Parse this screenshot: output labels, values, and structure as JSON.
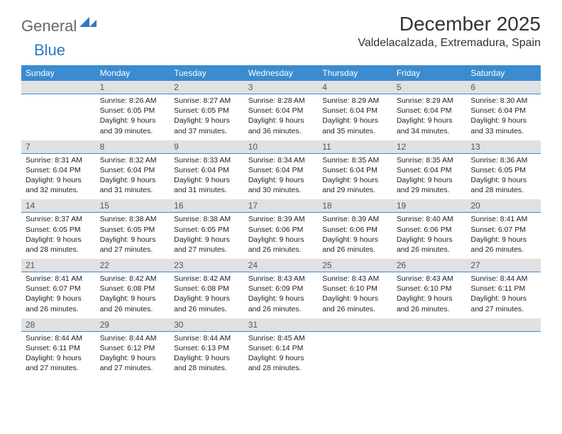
{
  "logo": {
    "text1": "General",
    "text2": "Blue"
  },
  "title": "December 2025",
  "location": "Valdelacalzada, Extremadura, Spain",
  "colors": {
    "header_bg": "#3b8bd0",
    "header_text": "#ffffff",
    "daynum_bg": "#e1e1e1",
    "daynum_border": "#3b8bd0",
    "body_text": "#222222",
    "logo_gray": "#666666",
    "logo_blue": "#2f78c4"
  },
  "weekdays": [
    "Sunday",
    "Monday",
    "Tuesday",
    "Wednesday",
    "Thursday",
    "Friday",
    "Saturday"
  ],
  "weeks": [
    {
      "nums": [
        "",
        "1",
        "2",
        "3",
        "4",
        "5",
        "6"
      ],
      "cells": [
        null,
        {
          "sr": "Sunrise: 8:26 AM",
          "ss": "Sunset: 6:05 PM",
          "d1": "Daylight: 9 hours",
          "d2": "and 39 minutes."
        },
        {
          "sr": "Sunrise: 8:27 AM",
          "ss": "Sunset: 6:05 PM",
          "d1": "Daylight: 9 hours",
          "d2": "and 37 minutes."
        },
        {
          "sr": "Sunrise: 8:28 AM",
          "ss": "Sunset: 6:04 PM",
          "d1": "Daylight: 9 hours",
          "d2": "and 36 minutes."
        },
        {
          "sr": "Sunrise: 8:29 AM",
          "ss": "Sunset: 6:04 PM",
          "d1": "Daylight: 9 hours",
          "d2": "and 35 minutes."
        },
        {
          "sr": "Sunrise: 8:29 AM",
          "ss": "Sunset: 6:04 PM",
          "d1": "Daylight: 9 hours",
          "d2": "and 34 minutes."
        },
        {
          "sr": "Sunrise: 8:30 AM",
          "ss": "Sunset: 6:04 PM",
          "d1": "Daylight: 9 hours",
          "d2": "and 33 minutes."
        }
      ]
    },
    {
      "nums": [
        "7",
        "8",
        "9",
        "10",
        "11",
        "12",
        "13"
      ],
      "cells": [
        {
          "sr": "Sunrise: 8:31 AM",
          "ss": "Sunset: 6:04 PM",
          "d1": "Daylight: 9 hours",
          "d2": "and 32 minutes."
        },
        {
          "sr": "Sunrise: 8:32 AM",
          "ss": "Sunset: 6:04 PM",
          "d1": "Daylight: 9 hours",
          "d2": "and 31 minutes."
        },
        {
          "sr": "Sunrise: 8:33 AM",
          "ss": "Sunset: 6:04 PM",
          "d1": "Daylight: 9 hours",
          "d2": "and 31 minutes."
        },
        {
          "sr": "Sunrise: 8:34 AM",
          "ss": "Sunset: 6:04 PM",
          "d1": "Daylight: 9 hours",
          "d2": "and 30 minutes."
        },
        {
          "sr": "Sunrise: 8:35 AM",
          "ss": "Sunset: 6:04 PM",
          "d1": "Daylight: 9 hours",
          "d2": "and 29 minutes."
        },
        {
          "sr": "Sunrise: 8:35 AM",
          "ss": "Sunset: 6:04 PM",
          "d1": "Daylight: 9 hours",
          "d2": "and 29 minutes."
        },
        {
          "sr": "Sunrise: 8:36 AM",
          "ss": "Sunset: 6:05 PM",
          "d1": "Daylight: 9 hours",
          "d2": "and 28 minutes."
        }
      ]
    },
    {
      "nums": [
        "14",
        "15",
        "16",
        "17",
        "18",
        "19",
        "20"
      ],
      "cells": [
        {
          "sr": "Sunrise: 8:37 AM",
          "ss": "Sunset: 6:05 PM",
          "d1": "Daylight: 9 hours",
          "d2": "and 28 minutes."
        },
        {
          "sr": "Sunrise: 8:38 AM",
          "ss": "Sunset: 6:05 PM",
          "d1": "Daylight: 9 hours",
          "d2": "and 27 minutes."
        },
        {
          "sr": "Sunrise: 8:38 AM",
          "ss": "Sunset: 6:05 PM",
          "d1": "Daylight: 9 hours",
          "d2": "and 27 minutes."
        },
        {
          "sr": "Sunrise: 8:39 AM",
          "ss": "Sunset: 6:06 PM",
          "d1": "Daylight: 9 hours",
          "d2": "and 26 minutes."
        },
        {
          "sr": "Sunrise: 8:39 AM",
          "ss": "Sunset: 6:06 PM",
          "d1": "Daylight: 9 hours",
          "d2": "and 26 minutes."
        },
        {
          "sr": "Sunrise: 8:40 AM",
          "ss": "Sunset: 6:06 PM",
          "d1": "Daylight: 9 hours",
          "d2": "and 26 minutes."
        },
        {
          "sr": "Sunrise: 8:41 AM",
          "ss": "Sunset: 6:07 PM",
          "d1": "Daylight: 9 hours",
          "d2": "and 26 minutes."
        }
      ]
    },
    {
      "nums": [
        "21",
        "22",
        "23",
        "24",
        "25",
        "26",
        "27"
      ],
      "cells": [
        {
          "sr": "Sunrise: 8:41 AM",
          "ss": "Sunset: 6:07 PM",
          "d1": "Daylight: 9 hours",
          "d2": "and 26 minutes."
        },
        {
          "sr": "Sunrise: 8:42 AM",
          "ss": "Sunset: 6:08 PM",
          "d1": "Daylight: 9 hours",
          "d2": "and 26 minutes."
        },
        {
          "sr": "Sunrise: 8:42 AM",
          "ss": "Sunset: 6:08 PM",
          "d1": "Daylight: 9 hours",
          "d2": "and 26 minutes."
        },
        {
          "sr": "Sunrise: 8:43 AM",
          "ss": "Sunset: 6:09 PM",
          "d1": "Daylight: 9 hours",
          "d2": "and 26 minutes."
        },
        {
          "sr": "Sunrise: 8:43 AM",
          "ss": "Sunset: 6:10 PM",
          "d1": "Daylight: 9 hours",
          "d2": "and 26 minutes."
        },
        {
          "sr": "Sunrise: 8:43 AM",
          "ss": "Sunset: 6:10 PM",
          "d1": "Daylight: 9 hours",
          "d2": "and 26 minutes."
        },
        {
          "sr": "Sunrise: 8:44 AM",
          "ss": "Sunset: 6:11 PM",
          "d1": "Daylight: 9 hours",
          "d2": "and 27 minutes."
        }
      ]
    },
    {
      "nums": [
        "28",
        "29",
        "30",
        "31",
        "",
        "",
        ""
      ],
      "cells": [
        {
          "sr": "Sunrise: 8:44 AM",
          "ss": "Sunset: 6:11 PM",
          "d1": "Daylight: 9 hours",
          "d2": "and 27 minutes."
        },
        {
          "sr": "Sunrise: 8:44 AM",
          "ss": "Sunset: 6:12 PM",
          "d1": "Daylight: 9 hours",
          "d2": "and 27 minutes."
        },
        {
          "sr": "Sunrise: 8:44 AM",
          "ss": "Sunset: 6:13 PM",
          "d1": "Daylight: 9 hours",
          "d2": "and 28 minutes."
        },
        {
          "sr": "Sunrise: 8:45 AM",
          "ss": "Sunset: 6:14 PM",
          "d1": "Daylight: 9 hours",
          "d2": "and 28 minutes."
        },
        null,
        null,
        null
      ]
    }
  ]
}
